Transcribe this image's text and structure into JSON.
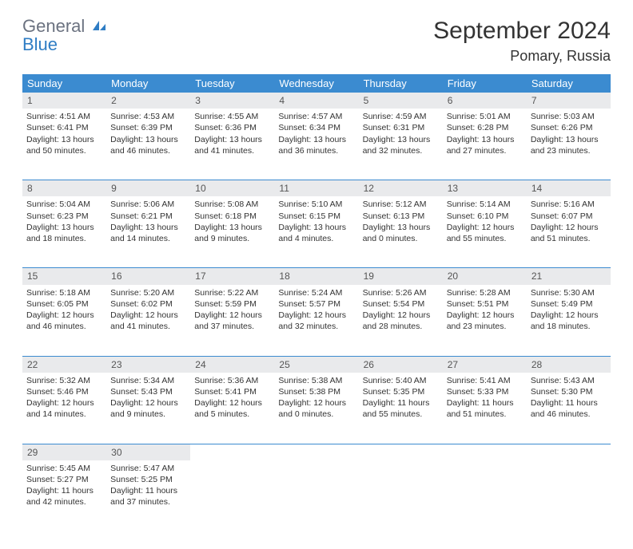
{
  "logo": {
    "general": "General",
    "blue": "Blue"
  },
  "title": "September 2024",
  "location": "Pomary, Russia",
  "colors": {
    "header_bg": "#3b8bd0",
    "header_text": "#ffffff",
    "daynum_bg": "#e9eaec",
    "daynum_text": "#555555",
    "cell_text": "#333333",
    "logo_gray": "#6b7280",
    "logo_blue": "#2f7dc4"
  },
  "weekdays": [
    "Sunday",
    "Monday",
    "Tuesday",
    "Wednesday",
    "Thursday",
    "Friday",
    "Saturday"
  ],
  "weeks": [
    [
      {
        "n": "1",
        "sunrise": "Sunrise: 4:51 AM",
        "sunset": "Sunset: 6:41 PM",
        "day": "Daylight: 13 hours and 50 minutes."
      },
      {
        "n": "2",
        "sunrise": "Sunrise: 4:53 AM",
        "sunset": "Sunset: 6:39 PM",
        "day": "Daylight: 13 hours and 46 minutes."
      },
      {
        "n": "3",
        "sunrise": "Sunrise: 4:55 AM",
        "sunset": "Sunset: 6:36 PM",
        "day": "Daylight: 13 hours and 41 minutes."
      },
      {
        "n": "4",
        "sunrise": "Sunrise: 4:57 AM",
        "sunset": "Sunset: 6:34 PM",
        "day": "Daylight: 13 hours and 36 minutes."
      },
      {
        "n": "5",
        "sunrise": "Sunrise: 4:59 AM",
        "sunset": "Sunset: 6:31 PM",
        "day": "Daylight: 13 hours and 32 minutes."
      },
      {
        "n": "6",
        "sunrise": "Sunrise: 5:01 AM",
        "sunset": "Sunset: 6:28 PM",
        "day": "Daylight: 13 hours and 27 minutes."
      },
      {
        "n": "7",
        "sunrise": "Sunrise: 5:03 AM",
        "sunset": "Sunset: 6:26 PM",
        "day": "Daylight: 13 hours and 23 minutes."
      }
    ],
    [
      {
        "n": "8",
        "sunrise": "Sunrise: 5:04 AM",
        "sunset": "Sunset: 6:23 PM",
        "day": "Daylight: 13 hours and 18 minutes."
      },
      {
        "n": "9",
        "sunrise": "Sunrise: 5:06 AM",
        "sunset": "Sunset: 6:21 PM",
        "day": "Daylight: 13 hours and 14 minutes."
      },
      {
        "n": "10",
        "sunrise": "Sunrise: 5:08 AM",
        "sunset": "Sunset: 6:18 PM",
        "day": "Daylight: 13 hours and 9 minutes."
      },
      {
        "n": "11",
        "sunrise": "Sunrise: 5:10 AM",
        "sunset": "Sunset: 6:15 PM",
        "day": "Daylight: 13 hours and 4 minutes."
      },
      {
        "n": "12",
        "sunrise": "Sunrise: 5:12 AM",
        "sunset": "Sunset: 6:13 PM",
        "day": "Daylight: 13 hours and 0 minutes."
      },
      {
        "n": "13",
        "sunrise": "Sunrise: 5:14 AM",
        "sunset": "Sunset: 6:10 PM",
        "day": "Daylight: 12 hours and 55 minutes."
      },
      {
        "n": "14",
        "sunrise": "Sunrise: 5:16 AM",
        "sunset": "Sunset: 6:07 PM",
        "day": "Daylight: 12 hours and 51 minutes."
      }
    ],
    [
      {
        "n": "15",
        "sunrise": "Sunrise: 5:18 AM",
        "sunset": "Sunset: 6:05 PM",
        "day": "Daylight: 12 hours and 46 minutes."
      },
      {
        "n": "16",
        "sunrise": "Sunrise: 5:20 AM",
        "sunset": "Sunset: 6:02 PM",
        "day": "Daylight: 12 hours and 41 minutes."
      },
      {
        "n": "17",
        "sunrise": "Sunrise: 5:22 AM",
        "sunset": "Sunset: 5:59 PM",
        "day": "Daylight: 12 hours and 37 minutes."
      },
      {
        "n": "18",
        "sunrise": "Sunrise: 5:24 AM",
        "sunset": "Sunset: 5:57 PM",
        "day": "Daylight: 12 hours and 32 minutes."
      },
      {
        "n": "19",
        "sunrise": "Sunrise: 5:26 AM",
        "sunset": "Sunset: 5:54 PM",
        "day": "Daylight: 12 hours and 28 minutes."
      },
      {
        "n": "20",
        "sunrise": "Sunrise: 5:28 AM",
        "sunset": "Sunset: 5:51 PM",
        "day": "Daylight: 12 hours and 23 minutes."
      },
      {
        "n": "21",
        "sunrise": "Sunrise: 5:30 AM",
        "sunset": "Sunset: 5:49 PM",
        "day": "Daylight: 12 hours and 18 minutes."
      }
    ],
    [
      {
        "n": "22",
        "sunrise": "Sunrise: 5:32 AM",
        "sunset": "Sunset: 5:46 PM",
        "day": "Daylight: 12 hours and 14 minutes."
      },
      {
        "n": "23",
        "sunrise": "Sunrise: 5:34 AM",
        "sunset": "Sunset: 5:43 PM",
        "day": "Daylight: 12 hours and 9 minutes."
      },
      {
        "n": "24",
        "sunrise": "Sunrise: 5:36 AM",
        "sunset": "Sunset: 5:41 PM",
        "day": "Daylight: 12 hours and 5 minutes."
      },
      {
        "n": "25",
        "sunrise": "Sunrise: 5:38 AM",
        "sunset": "Sunset: 5:38 PM",
        "day": "Daylight: 12 hours and 0 minutes."
      },
      {
        "n": "26",
        "sunrise": "Sunrise: 5:40 AM",
        "sunset": "Sunset: 5:35 PM",
        "day": "Daylight: 11 hours and 55 minutes."
      },
      {
        "n": "27",
        "sunrise": "Sunrise: 5:41 AM",
        "sunset": "Sunset: 5:33 PM",
        "day": "Daylight: 11 hours and 51 minutes."
      },
      {
        "n": "28",
        "sunrise": "Sunrise: 5:43 AM",
        "sunset": "Sunset: 5:30 PM",
        "day": "Daylight: 11 hours and 46 minutes."
      }
    ],
    [
      {
        "n": "29",
        "sunrise": "Sunrise: 5:45 AM",
        "sunset": "Sunset: 5:27 PM",
        "day": "Daylight: 11 hours and 42 minutes."
      },
      {
        "n": "30",
        "sunrise": "Sunrise: 5:47 AM",
        "sunset": "Sunset: 5:25 PM",
        "day": "Daylight: 11 hours and 37 minutes."
      },
      null,
      null,
      null,
      null,
      null
    ]
  ]
}
